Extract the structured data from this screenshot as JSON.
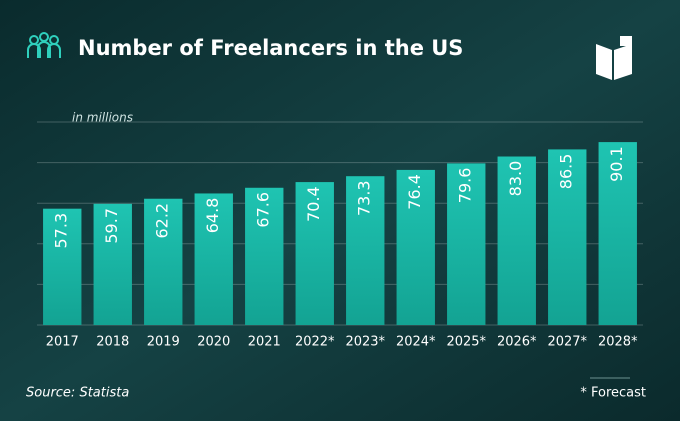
{
  "chart_data": {
    "type": "bar",
    "title": "Number of Freelancers in the US",
    "subtitle": "in millions",
    "categories": [
      "2017",
      "2018",
      "2019",
      "2020",
      "2021",
      "2022*",
      "2023*",
      "2024*",
      "2025*",
      "2026*",
      "2027*",
      "2028*"
    ],
    "values": [
      57.3,
      59.7,
      62.2,
      64.8,
      67.6,
      70.4,
      73.3,
      76.4,
      79.6,
      83.0,
      86.5,
      90.1
    ],
    "value_labels": [
      "57.3",
      "59.7",
      "62.2",
      "64.8",
      "67.6",
      "70.4",
      "73.3",
      "76.4",
      "79.6",
      "83.0",
      "86.5",
      "90.1"
    ],
    "color": "#19b3a3",
    "ylim": [
      0,
      100
    ],
    "yticks": [
      0,
      20,
      40,
      60,
      80,
      100
    ],
    "grid": true,
    "source": "Source: Statista",
    "footnote": "* Forecast"
  }
}
